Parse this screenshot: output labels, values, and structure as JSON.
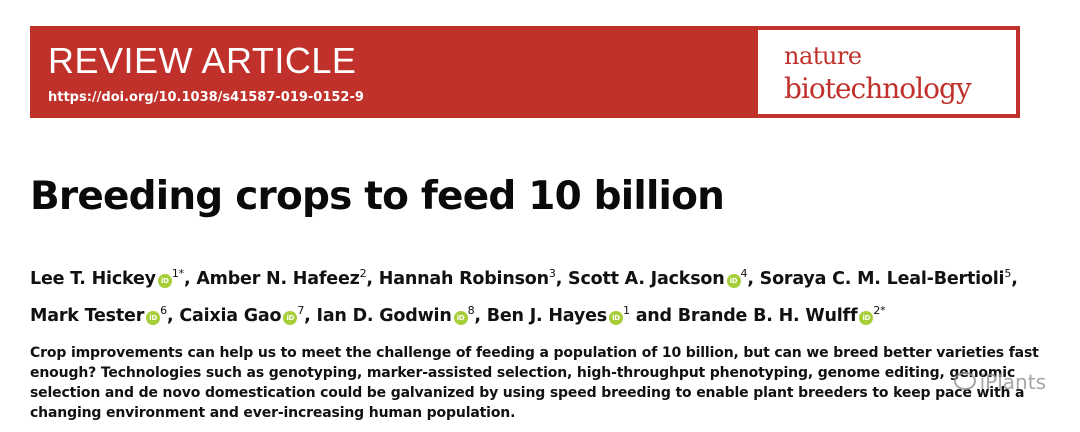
{
  "header": {
    "article_type": "REVIEW ARTICLE",
    "doi": "https://doi.org/10.1038/s41587-019-0152-9",
    "journal_line1": "nature",
    "journal_line2": "biotechnology",
    "colors": {
      "band": "#c0312b",
      "journal_text": "#c0312b"
    }
  },
  "title": "Breeding crops to feed 10 billion",
  "authors": [
    [
      {
        "name": "Lee T. Hickey",
        "orcid": true,
        "aff": "1*",
        "sep": ", "
      },
      {
        "name": "Amber N. Hafeez",
        "orcid": false,
        "aff": "2",
        "sep": ", "
      },
      {
        "name": "Hannah Robinson",
        "orcid": false,
        "aff": "3",
        "sep": ", "
      },
      {
        "name": "Scott A. Jackson",
        "orcid": true,
        "aff": "4",
        "sep": ", "
      },
      {
        "name": "Soraya C. M. Leal-Bertioli",
        "orcid": false,
        "aff": "5",
        "sep": ","
      }
    ],
    [
      {
        "name": "Mark Tester",
        "orcid": true,
        "aff": "6",
        "sep": ", "
      },
      {
        "name": "Caixia Gao",
        "orcid": true,
        "aff": "7",
        "sep": ", "
      },
      {
        "name": "Ian D. Godwin",
        "orcid": true,
        "aff": "8",
        "sep": ", "
      },
      {
        "name": "Ben J. Hayes",
        "orcid": true,
        "aff": "1",
        "sep": " and "
      },
      {
        "name": "Brande B. H. Wulff",
        "orcid": true,
        "aff": "2*",
        "sep": ""
      }
    ]
  ],
  "orcid_icon": {
    "name": "orcid-icon",
    "label": "iD",
    "color": "#a6ce39"
  },
  "abstract_lines": [
    "Crop improvements can help us to meet the challenge of feeding a population of 10 billion, but can we breed better varieties fast",
    "enough? Technologies such as genotyping, marker-assisted selection, high-throughput phenotyping, genome editing, genomic",
    "selection and de novo domestication could be galvanized by using speed breeding to enable plant breeders to keep pace with a",
    "changing environment and ever-increasing human population."
  ],
  "watermark": {
    "right_text": "iPlants"
  }
}
